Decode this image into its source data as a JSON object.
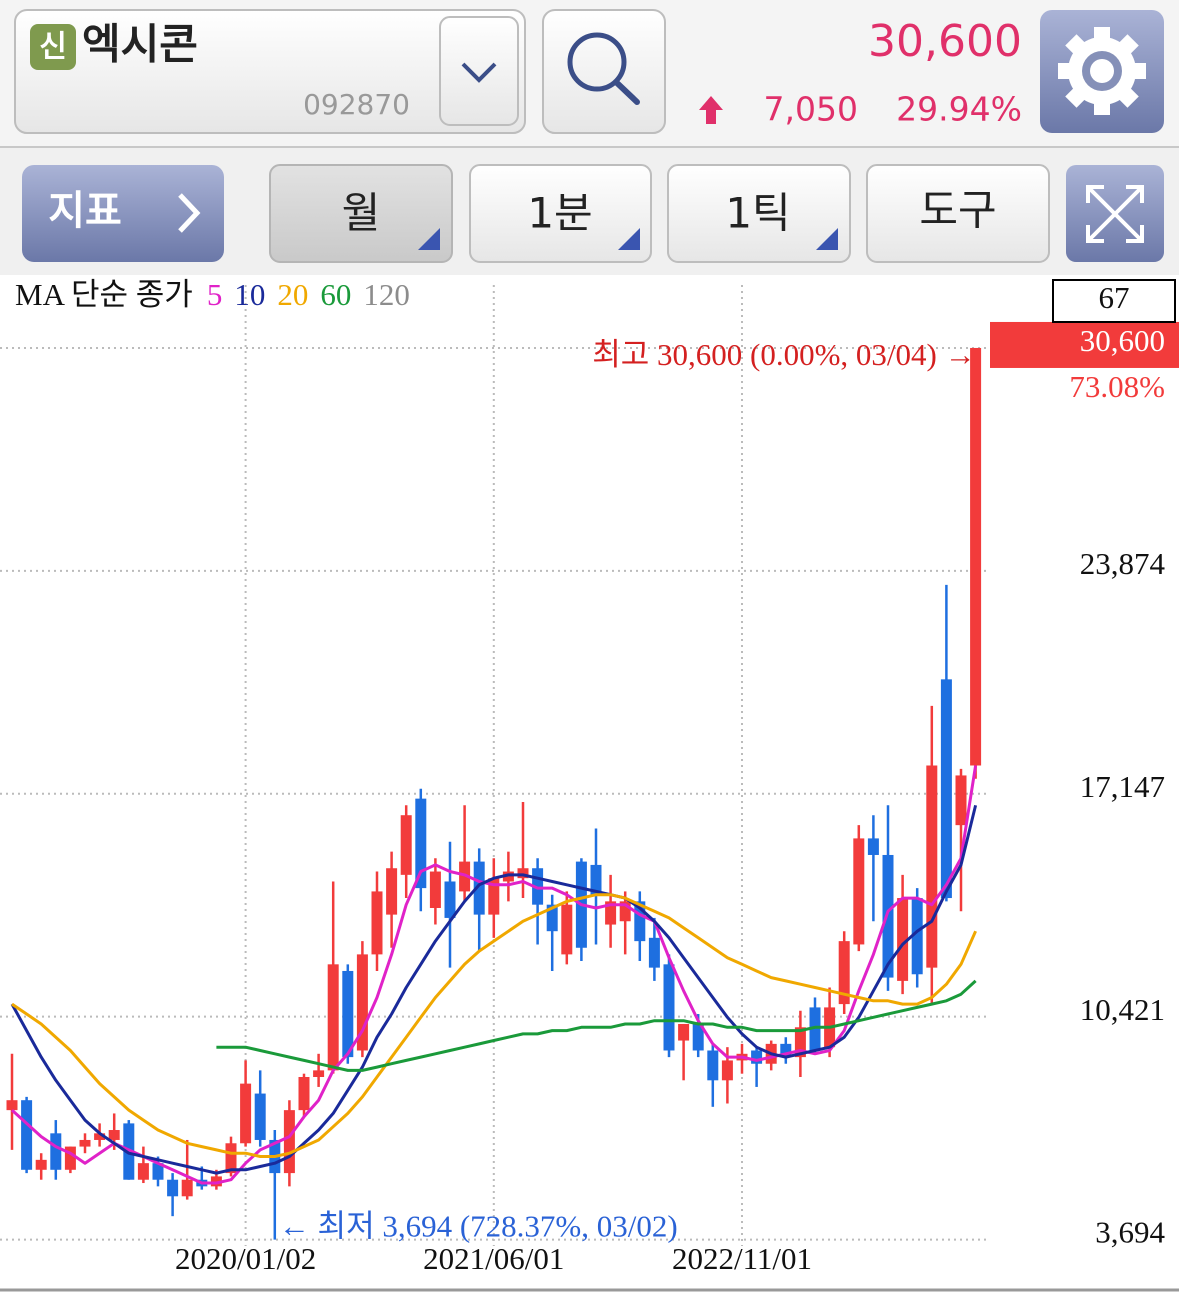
{
  "header": {
    "badge": "신",
    "name": "엑시콘",
    "code": "092870",
    "price": "30,600",
    "change": "7,050",
    "change_rate": "29.94%"
  },
  "toolbar": {
    "indicator": "지표",
    "period": "월",
    "interval": "1분",
    "tick": "1틱",
    "tools": "도구"
  },
  "chart_data": {
    "type": "candlestick",
    "legend_prefix": "MA 단순 종가",
    "visible_count": 67,
    "categories": [
      null,
      null,
      null,
      null,
      null,
      null,
      null,
      null,
      null,
      null,
      null,
      null,
      null,
      null,
      null,
      null,
      "2020/01/02",
      null,
      null,
      null,
      null,
      null,
      null,
      null,
      null,
      null,
      null,
      null,
      null,
      null,
      null,
      null,
      null,
      "2021/06/01",
      null,
      null,
      null,
      null,
      null,
      null,
      null,
      null,
      null,
      null,
      null,
      null,
      null,
      null,
      null,
      null,
      "2022/11/01",
      null,
      null,
      null,
      null,
      null,
      null,
      null,
      null,
      null,
      null,
      null,
      null,
      null,
      null,
      null,
      null
    ],
    "open": [
      7600,
      7900,
      5800,
      6900,
      5800,
      6500,
      6700,
      6700,
      7200,
      5500,
      6000,
      5500,
      5000,
      5500,
      5300,
      5700,
      6600,
      8100,
      6700,
      5700,
      7600,
      8600,
      8800,
      11800,
      9400,
      12300,
      13500,
      14700,
      17000,
      13700,
      14500,
      14200,
      15100,
      13500,
      14500,
      14600,
      14900,
      13800,
      12300,
      15100,
      15000,
      13200,
      13300,
      13900,
      12800,
      12000,
      9700,
      10200,
      9400,
      8500,
      9100,
      9400,
      9000,
      9600,
      9200,
      10700,
      9500,
      10800,
      12600,
      15800,
      15300,
      11500,
      14000,
      11900,
      20600,
      16200,
      18000
    ],
    "high": [
      9300,
      8000,
      6300,
      7300,
      6500,
      6900,
      7200,
      7500,
      7300,
      6500,
      6200,
      5700,
      6700,
      5900,
      5800,
      6800,
      9100,
      8800,
      7000,
      7900,
      8700,
      9300,
      14500,
      12000,
      12700,
      14800,
      15400,
      16800,
      17300,
      15200,
      15700,
      16800,
      15500,
      15200,
      15400,
      16900,
      15200,
      14100,
      14200,
      15200,
      16100,
      14700,
      14200,
      14200,
      13400,
      12300,
      10200,
      10500,
      9600,
      9500,
      9600,
      9500,
      9700,
      9800,
      10600,
      11000,
      11300,
      13000,
      16200,
      16500,
      16800,
      14700,
      14300,
      19800,
      23450,
      17900,
      30600
    ],
    "low": [
      6400,
      5700,
      5500,
      5500,
      5700,
      6300,
      6500,
      6400,
      5500,
      5400,
      5300,
      4400,
      4900,
      5200,
      5200,
      5600,
      6500,
      6500,
      3694,
      5300,
      7400,
      8300,
      8700,
      9000,
      9200,
      11800,
      12500,
      14000,
      13600,
      13200,
      11900,
      13900,
      12400,
      12800,
      13900,
      14000,
      12600,
      11800,
      12000,
      12100,
      12600,
      12500,
      12300,
      12100,
      11500,
      9200,
      8500,
      9200,
      7700,
      7800,
      8700,
      8300,
      8800,
      9000,
      8600,
      9300,
      9200,
      10500,
      12400,
      13300,
      11200,
      11100,
      11300,
      10800,
      13900,
      13600,
      17600
    ],
    "close": [
      7900,
      5800,
      6100,
      5800,
      6500,
      6700,
      6900,
      7000,
      5500,
      6000,
      5500,
      5000,
      5500,
      5300,
      5600,
      6600,
      8400,
      6700,
      5700,
      7600,
      8600,
      8800,
      12000,
      9200,
      12300,
      14200,
      14900,
      16500,
      14300,
      14800,
      13400,
      15100,
      13500,
      14600,
      14800,
      14900,
      13800,
      13000,
      13800,
      12500,
      14100,
      13900,
      13900,
      12700,
      11900,
      9400,
      10200,
      9400,
      8500,
      9100,
      9300,
      9000,
      9600,
      9200,
      10100,
      9400,
      10700,
      12700,
      15800,
      15300,
      11600,
      14000,
      11700,
      18000,
      14000,
      17700,
      30600
    ],
    "up_color": "#f23b3b",
    "down_color": "#1e6fe0",
    "series": [
      {
        "name": "5",
        "color": "#e022c8",
        "values": [
          7600,
          7200,
          6800,
          6500,
          6300,
          6000,
          6300,
          6600,
          6400,
          6200,
          6000,
          5800,
          5600,
          5400,
          5400,
          5500,
          6000,
          6400,
          6600,
          6800,
          7400,
          7900,
          8800,
          9300,
          10000,
          11000,
          12300,
          13800,
          14800,
          15000,
          14800,
          14700,
          14500,
          14400,
          14400,
          14500,
          14300,
          14300,
          14100,
          13800,
          13700,
          13800,
          13800,
          13500,
          13300,
          12200,
          11200,
          10300,
          9600,
          9200,
          9200,
          9100,
          9200,
          9300,
          9400,
          9300,
          9400,
          10000,
          11200,
          12300,
          13600,
          14000,
          14000,
          13800,
          14400,
          15200,
          18000
        ]
      },
      {
        "name": "10",
        "color": "#1a2a9a",
        "values": [
          10800,
          10000,
          9200,
          8500,
          7900,
          7300,
          6900,
          6600,
          6300,
          6200,
          6100,
          6000,
          5900,
          5800,
          5700,
          5800,
          5800,
          5900,
          6000,
          6200,
          6600,
          7000,
          7500,
          8200,
          8900,
          9800,
          10500,
          11300,
          12000,
          12700,
          13300,
          13900,
          14400,
          14600,
          14700,
          14700,
          14600,
          14500,
          14400,
          14300,
          14200,
          14100,
          14000,
          13700,
          13300,
          12800,
          12200,
          11600,
          11000,
          10400,
          9900,
          9500,
          9300,
          9200,
          9300,
          9400,
          9500,
          9800,
          10400,
          11200,
          12000,
          12600,
          13000,
          13300,
          14200,
          15000,
          16800
        ]
      },
      {
        "name": "20",
        "color": "#f0a800",
        "values": [
          10800,
          10500,
          10200,
          9800,
          9400,
          8900,
          8400,
          8000,
          7600,
          7300,
          7000,
          6800,
          6600,
          6500,
          6400,
          6300,
          6300,
          6200,
          6200,
          6300,
          6500,
          6700,
          7100,
          7500,
          8000,
          8600,
          9200,
          9800,
          10400,
          11000,
          11500,
          12000,
          12400,
          12700,
          13000,
          13300,
          13500,
          13700,
          13900,
          14000,
          14100,
          14100,
          14000,
          13800,
          13600,
          13400,
          13100,
          12800,
          12500,
          12200,
          12000,
          11800,
          11600,
          11500,
          11400,
          11300,
          11200,
          11100,
          11000,
          10900,
          10900,
          10800,
          10800,
          11000,
          11400,
          12000,
          13000
        ]
      },
      {
        "name": "60",
        "color": "#1a9a3a",
        "values": [
          null,
          null,
          null,
          null,
          null,
          null,
          null,
          null,
          null,
          null,
          null,
          null,
          null,
          null,
          9500,
          9500,
          9500,
          9400,
          9300,
          9200,
          9100,
          9000,
          8900,
          8800,
          8800,
          8900,
          9000,
          9100,
          9200,
          9300,
          9400,
          9500,
          9600,
          9700,
          9800,
          9900,
          9900,
          10000,
          10000,
          10100,
          10100,
          10100,
          10200,
          10200,
          10300,
          10300,
          10300,
          10200,
          10200,
          10100,
          10100,
          10000,
          10000,
          10000,
          10000,
          10100,
          10100,
          10200,
          10300,
          10400,
          10500,
          10600,
          10700,
          10800,
          10900,
          11100,
          11500
        ]
      },
      {
        "name": "120",
        "color": "#8c8c8c"
      }
    ],
    "ylim": [
      3500,
      32500
    ],
    "yticks": [
      {
        "value": 3694,
        "label": "3,694"
      },
      {
        "value": 10421,
        "label": "10,421"
      },
      {
        "value": 17147,
        "label": "17,147"
      },
      {
        "value": 23874,
        "label": "23,874"
      }
    ],
    "grid": true,
    "price_box": {
      "value": 30600,
      "label": "30,600"
    },
    "price_rate": "73.08%",
    "annotations": {
      "high": "최고 30,600 (0.00%, 03/04) →",
      "low": "← 최저 3,694 (728.37%, 03/02)"
    }
  }
}
